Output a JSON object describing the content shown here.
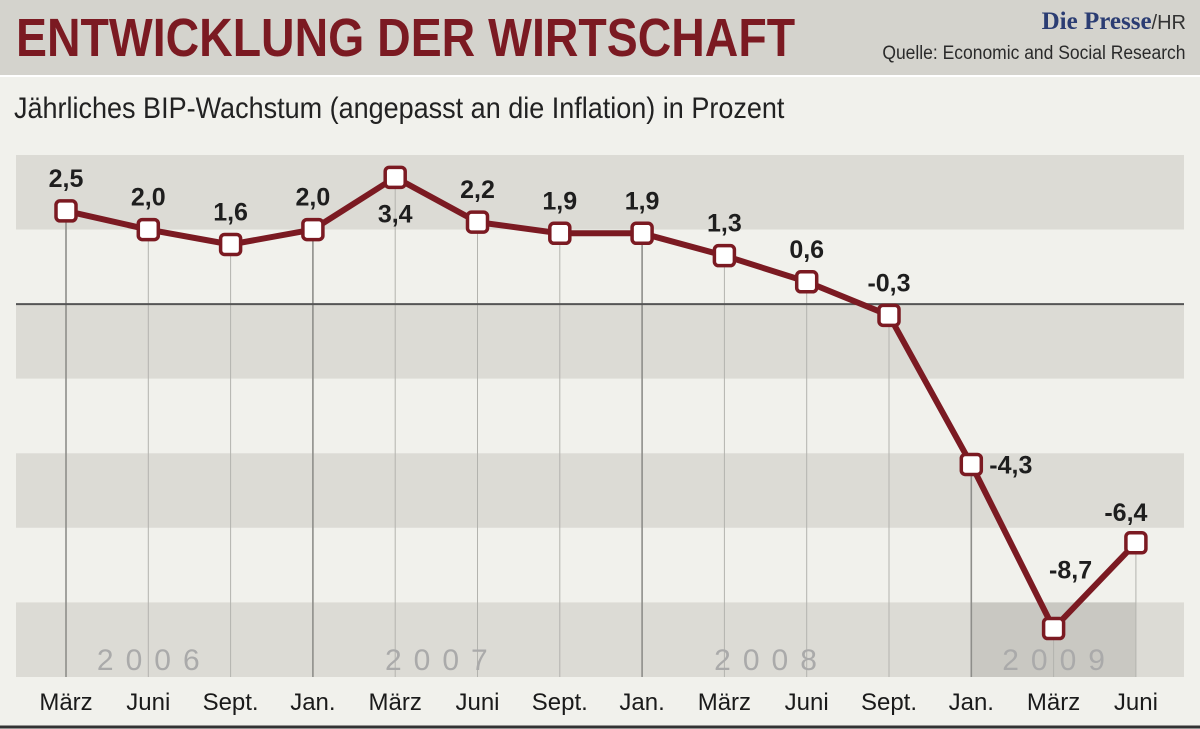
{
  "header": {
    "title": "ENTWICKLUNG DER WIRTSCHAFT",
    "brand": "Die Presse",
    "brand_suffix": "HR",
    "source": "Quelle: Economic and Social Research"
  },
  "chart_data": {
    "type": "line",
    "title": "ENTWICKLUNG DER WIRTSCHAFT",
    "subtitle": "Jährliches BIP-Wachstum (angepasst an die Inflation) in Prozent",
    "categories": [
      "März",
      "Juni",
      "Sept.",
      "Jan.",
      "März",
      "Juni",
      "Sept.",
      "Jan.",
      "März",
      "Juni",
      "Sept.",
      "Jan.",
      "März",
      "Juni"
    ],
    "series": [
      {
        "name": "BIP-Wachstum",
        "values": [
          2.5,
          2.0,
          1.6,
          2.0,
          3.4,
          2.2,
          1.9,
          1.9,
          1.3,
          0.6,
          -0.3,
          -4.3,
          -8.7,
          -6.4
        ],
        "labels": [
          "2,5",
          "2,0",
          "1,6",
          "2,0",
          "3,4",
          "2,2",
          "1,9",
          "1,9",
          "1,3",
          "0,6",
          "-0,3",
          "-4,3",
          "-8,7",
          "-6,4"
        ],
        "color": "#7b1a22"
      }
    ],
    "years": [
      {
        "label": "2006",
        "from_index": 0,
        "to_index": 2
      },
      {
        "label": "2007",
        "from_index": 3,
        "to_index": 6
      },
      {
        "label": "2008",
        "from_index": 7,
        "to_index": 10
      },
      {
        "label": "2009",
        "from_index": 11,
        "to_index": 13
      }
    ],
    "ylim": [
      -10,
      4
    ],
    "band_step": 2,
    "xlabel": "",
    "ylabel": "",
    "grid": true
  },
  "colors": {
    "line": "#7b1a22",
    "band_dark": "#dcdbd5",
    "band_light": "#f1f1ec",
    "highlight": "#c9c8c2",
    "zero_line": "#555555",
    "marker_fill": "#ffffff"
  }
}
